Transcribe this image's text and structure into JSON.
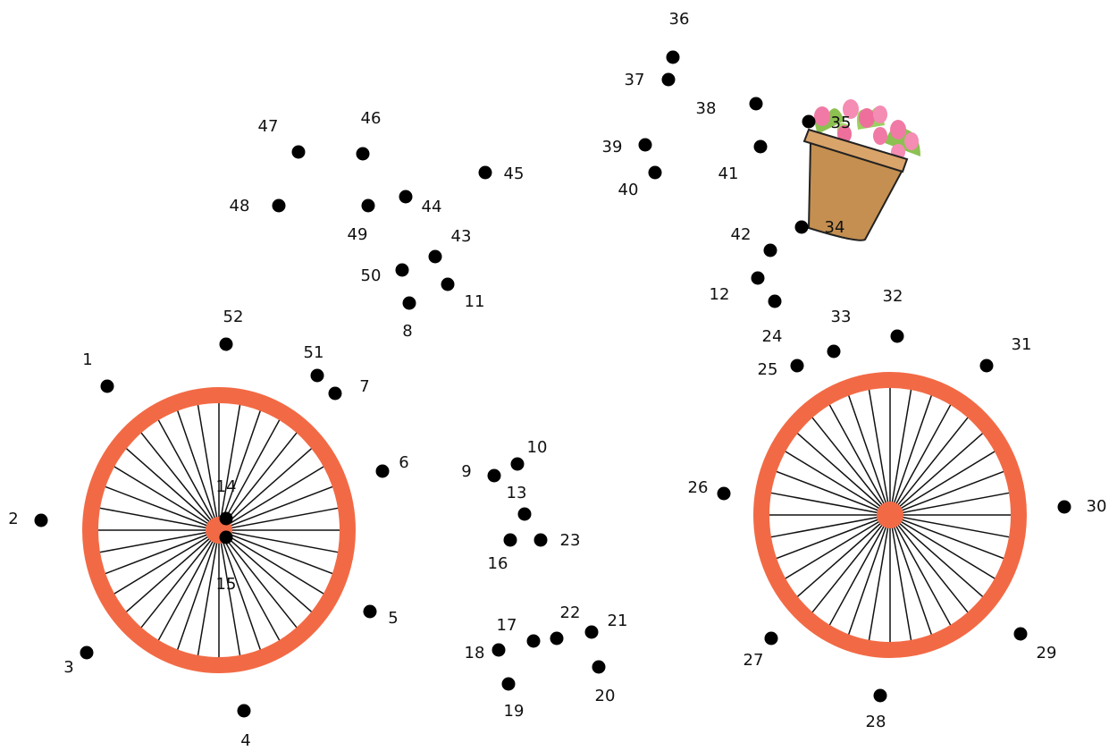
{
  "dots": [
    "1",
    "2",
    "3",
    "4",
    "5",
    "6",
    "7",
    "8",
    "9",
    "10",
    "11",
    "12",
    "13",
    "14",
    "15",
    "16",
    "17",
    "18",
    "19",
    "20",
    "21",
    "22",
    "23",
    "24",
    "25",
    "26",
    "27",
    "28",
    "29",
    "30",
    "31",
    "32",
    "33",
    "34",
    "35",
    "36",
    "37",
    "38",
    "39",
    "40",
    "41",
    "42",
    "43",
    "44",
    "45",
    "46",
    "47",
    "48",
    "49",
    "50",
    "51",
    "52"
  ]
}
